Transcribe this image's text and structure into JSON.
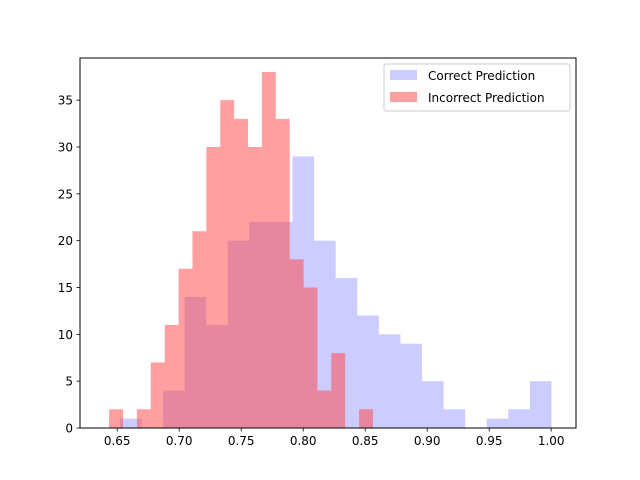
{
  "chart_data": {
    "type": "histogram",
    "title": "",
    "xlabel": "",
    "ylabel": "",
    "xlim": [
      0.62,
      1.02
    ],
    "ylim": [
      0,
      39.5
    ],
    "x_ticks": [
      0.65,
      0.7,
      0.75,
      0.8,
      0.85,
      0.9,
      0.95,
      1.0
    ],
    "x_tick_labels": [
      "0.65",
      "0.70",
      "0.75",
      "0.80",
      "0.85",
      "0.90",
      "0.95",
      "1.00"
    ],
    "y_ticks": [
      0,
      5,
      10,
      15,
      20,
      25,
      30,
      35
    ],
    "y_tick_labels": [
      "0",
      "5",
      "10",
      "15",
      "20",
      "25",
      "30",
      "35"
    ],
    "grid": false,
    "legend_position": "top-right",
    "series": [
      {
        "name": "Correct Prediction",
        "color": "#9999ff",
        "opacity": 0.5,
        "bin_edges": [
          0.6522,
          0.6696,
          0.687,
          0.7044,
          0.7218,
          0.7392,
          0.7566,
          0.774,
          0.7914,
          0.8088,
          0.8262,
          0.8436,
          0.861,
          0.8784,
          0.8958,
          0.9132,
          0.9306,
          0.948,
          0.9654,
          0.9828,
          1.0002
        ],
        "counts": [
          1,
          0,
          4,
          14,
          11,
          20,
          22,
          22,
          29,
          20,
          16,
          12,
          10,
          9,
          5,
          2,
          0,
          1,
          2,
          5
        ]
      },
      {
        "name": "Incorrect Prediction",
        "color": "#ff4040",
        "opacity": 0.5,
        "bin_edges": [
          0.6435,
          0.6547,
          0.6659,
          0.6771,
          0.6883,
          0.6995,
          0.7107,
          0.7219,
          0.7331,
          0.7443,
          0.7555,
          0.7667,
          0.7779,
          0.7891,
          0.8003,
          0.8115,
          0.8227,
          0.8339,
          0.8451,
          0.8563
        ],
        "counts": [
          2,
          0,
          2,
          7,
          11,
          17,
          21,
          30,
          35,
          33,
          30,
          38,
          33,
          18,
          15,
          4,
          8,
          0,
          2
        ]
      }
    ]
  }
}
